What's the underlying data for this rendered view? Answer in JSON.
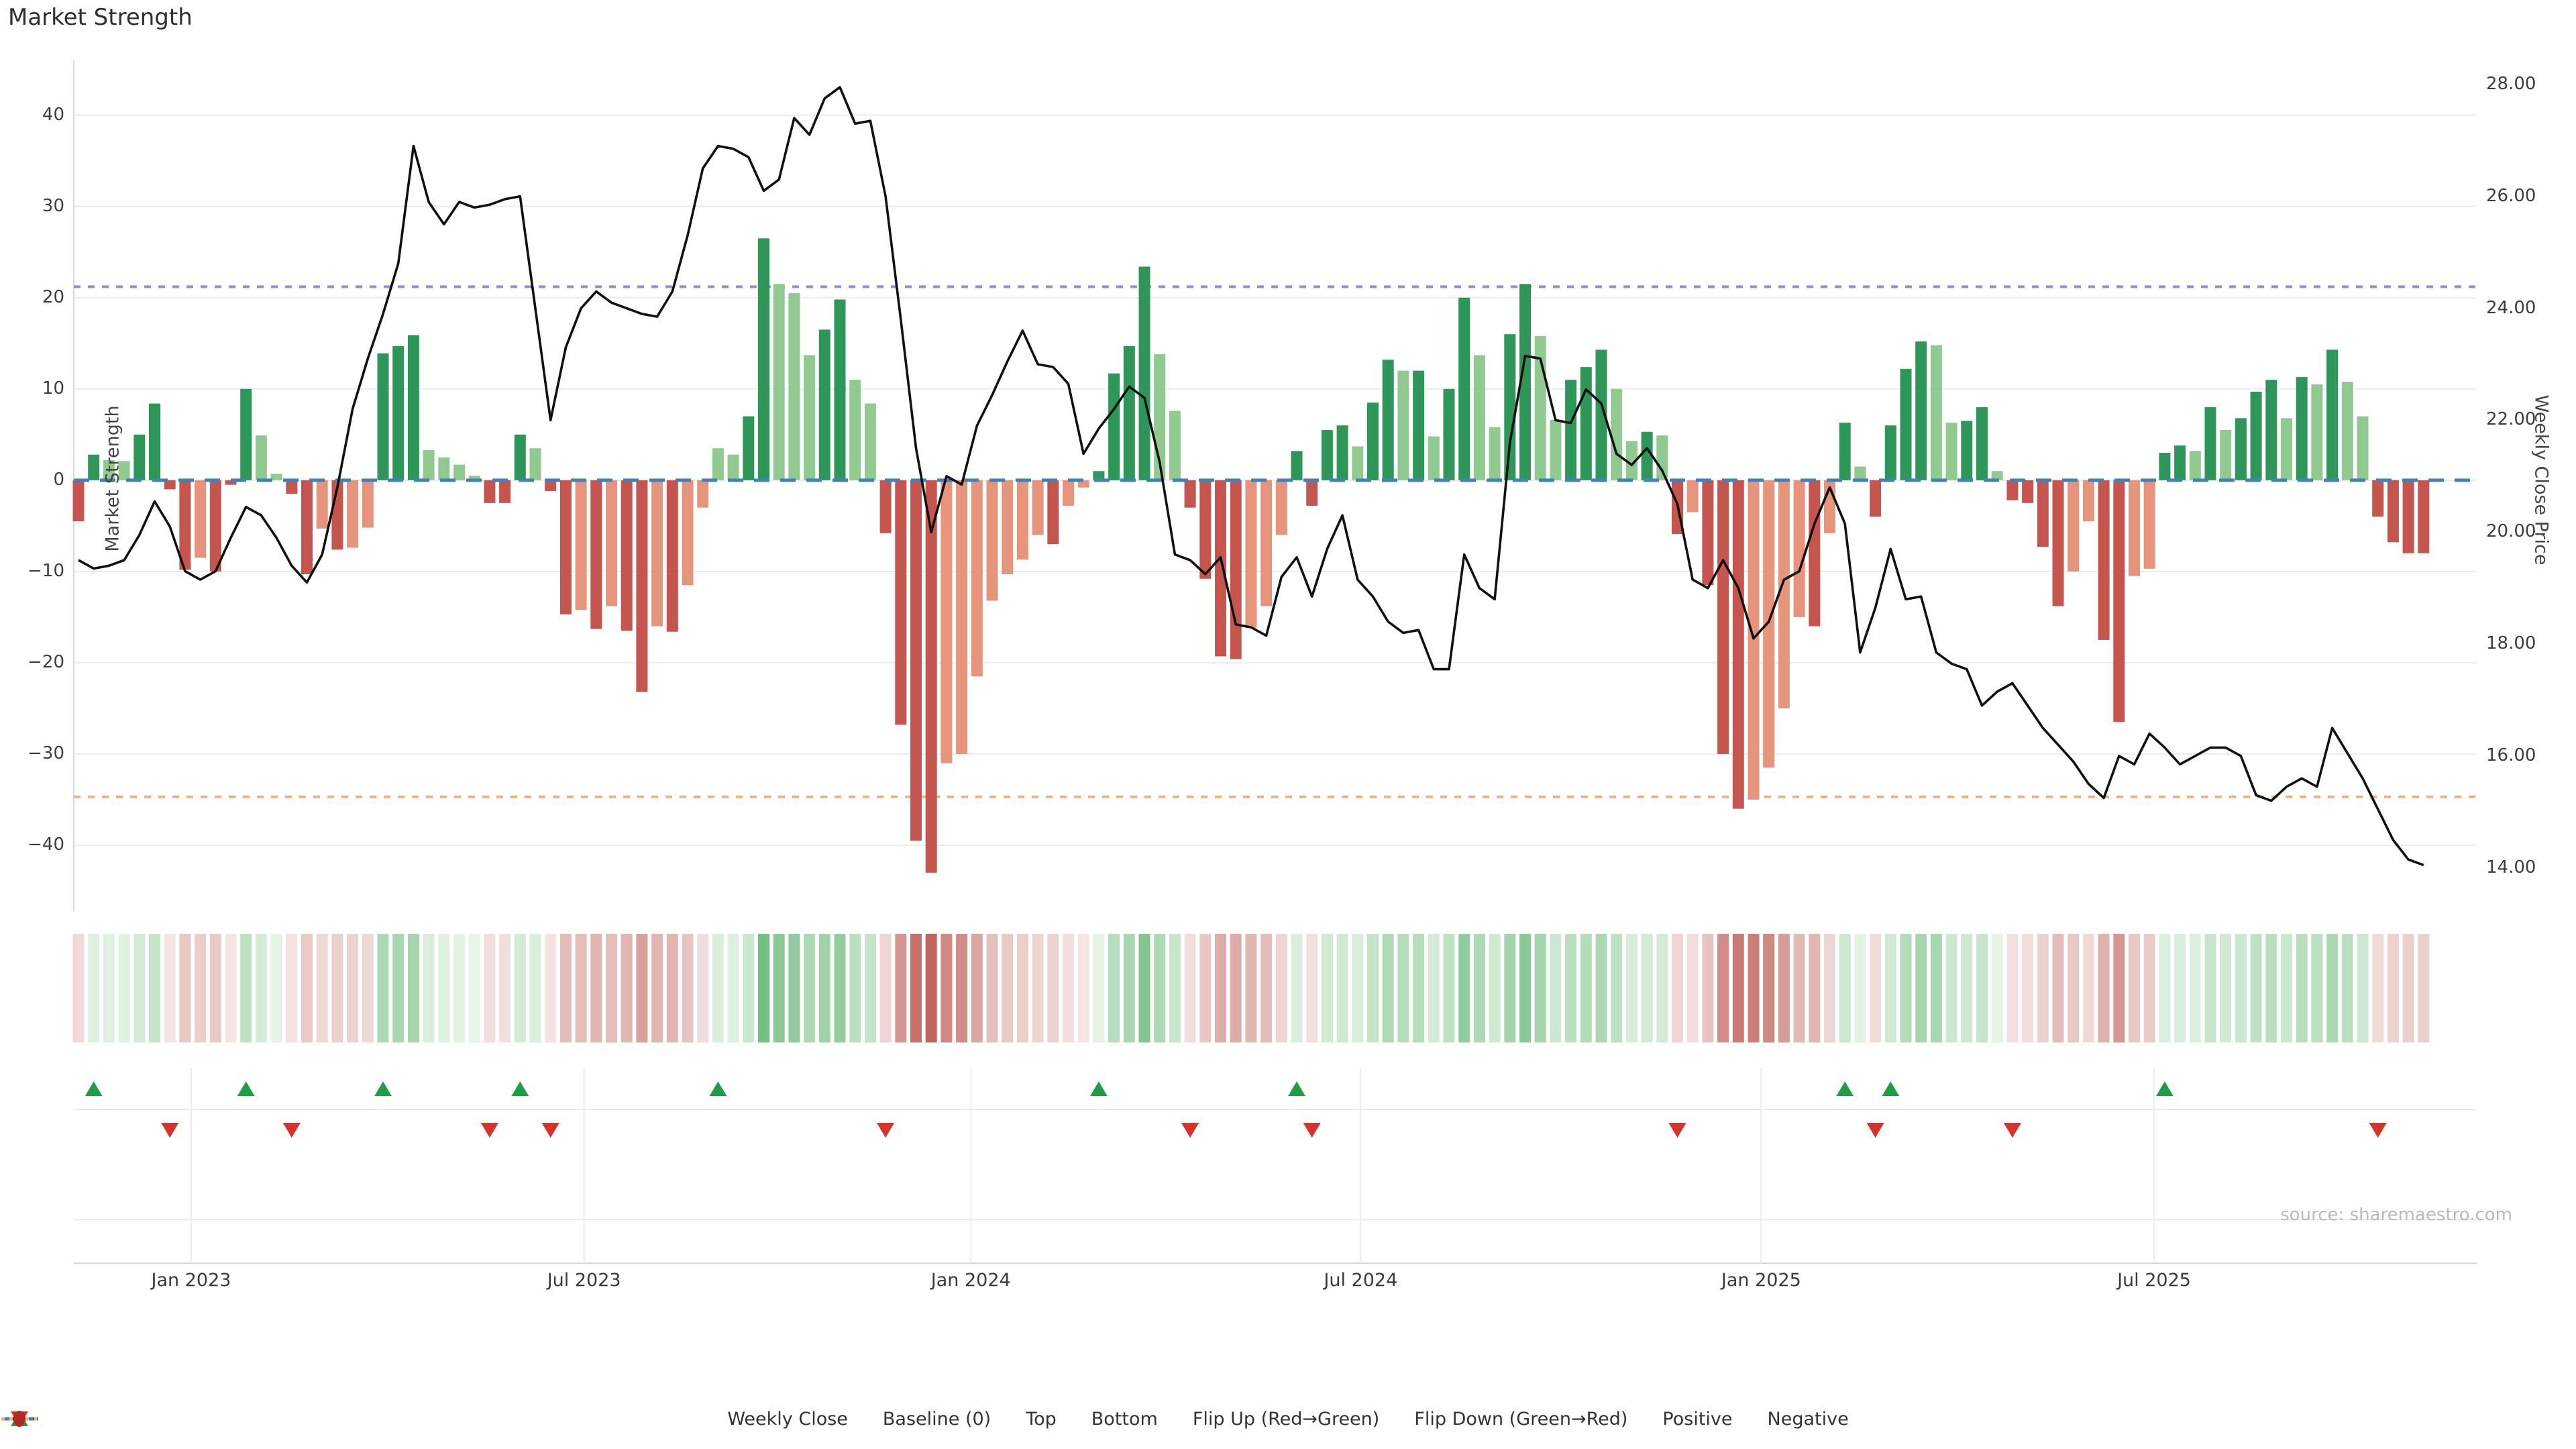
{
  "title": "Market Strength",
  "source": "source: sharemaestro.com",
  "axes": {
    "left_title": "Market Strength",
    "right_title": "Weekly Close Price",
    "left_ticks": [
      "40",
      "30",
      "20",
      "10",
      "0",
      "−10",
      "−20",
      "−30",
      "−40"
    ],
    "left_tick_values": [
      40,
      30,
      20,
      10,
      0,
      -10,
      -20,
      -30,
      -40
    ],
    "right_ticks": [
      "28.00",
      "26.00",
      "24.00",
      "22.00",
      "20.00",
      "18.00",
      "16.00",
      "14.00"
    ],
    "right_tick_values": [
      28,
      26,
      24,
      22,
      20,
      18,
      16,
      14
    ],
    "x_ticks": [
      {
        "label": "Jan 2023",
        "week": 7.4
      },
      {
        "label": "Jul 2023",
        "week": 33.2
      },
      {
        "label": "Jan 2024",
        "week": 58.6
      },
      {
        "label": "Jul 2024",
        "week": 84.2
      },
      {
        "label": "Jan 2025",
        "week": 110.5
      },
      {
        "label": "Jul 2025",
        "week": 136.3
      }
    ]
  },
  "chart_data": {
    "type": "bar",
    "title": "Market Strength",
    "ylabel_left": "Market Strength",
    "ylabel_right": "Weekly Close Price",
    "ylim_left": [
      -47.2,
      46.0
    ],
    "ylim_right": [
      13.23,
      28.43
    ],
    "baseline": 0,
    "top_line": 21.2,
    "bottom_line": -34.7,
    "n_weeks": 155,
    "series": [
      {
        "name": "Market Strength",
        "type": "bar",
        "values": [
          -4.5,
          2.8,
          2.2,
          2.1,
          5.0,
          8.4,
          -1.0,
          -9.8,
          -8.5,
          -10.0,
          -0.5,
          10.0,
          4.9,
          0.7,
          -1.5,
          -10.3,
          -5.3,
          -7.6,
          -7.4,
          -5.2,
          13.9,
          14.7,
          15.9,
          3.3,
          2.5,
          1.7,
          0.5,
          -2.5,
          -2.5,
          5.0,
          3.5,
          -1.2,
          -14.7,
          -14.2,
          -16.3,
          -13.8,
          -16.5,
          -23.2,
          -16.0,
          -16.6,
          -11.5,
          -3.0,
          3.5,
          2.8,
          7.0,
          26.5,
          21.5,
          20.5,
          13.7,
          16.5,
          19.8,
          11.0,
          8.4,
          -5.8,
          -26.8,
          -39.5,
          -43.0,
          -31.0,
          -30.0,
          -21.5,
          -13.2,
          -10.3,
          -8.7,
          -6.0,
          -7.0,
          -2.8,
          -0.8,
          1.0,
          11.7,
          14.7,
          23.4,
          13.8,
          7.6,
          -3.0,
          -10.8,
          -19.3,
          -19.6,
          -16.2,
          -13.8,
          -6.0,
          3.2,
          -2.8,
          5.5,
          6.0,
          3.7,
          8.5,
          13.2,
          12.0,
          12.0,
          4.8,
          10.0,
          20.0,
          13.7,
          5.8,
          16.0,
          21.5,
          15.8,
          6.6,
          11.0,
          12.4,
          14.3,
          10.0,
          4.3,
          5.3,
          4.9,
          -5.9,
          -3.5,
          -11.5,
          -30.0,
          -36.0,
          -35.0,
          -31.5,
          -25.0,
          -15.0,
          -16.0,
          -5.8,
          6.3,
          1.5,
          -4.0,
          6.0,
          12.2,
          15.2,
          14.8,
          6.3,
          6.5,
          8.0,
          1.0,
          -2.2,
          -2.5,
          -7.3,
          -13.8,
          -10.0,
          -4.5,
          -17.5,
          -26.5,
          -10.5,
          -9.7,
          3.0,
          3.8,
          3.2,
          8.0,
          5.5,
          6.8,
          9.7,
          11.0,
          6.8,
          11.3,
          10.5,
          14.3,
          10.8,
          7.0,
          -4.0,
          -6.8,
          -8.0,
          -8.0
        ]
      },
      {
        "name": "Weekly Close",
        "type": "line",
        "values": [
          19.5,
          19.35,
          19.4,
          19.5,
          19.95,
          20.55,
          20.1,
          19.3,
          19.15,
          19.3,
          19.9,
          20.45,
          20.3,
          19.9,
          19.4,
          19.1,
          19.6,
          20.8,
          22.2,
          23.1,
          23.9,
          24.8,
          26.9,
          25.9,
          25.5,
          25.9,
          25.8,
          25.85,
          25.95,
          26.0,
          24.0,
          22.0,
          23.3,
          24.0,
          24.3,
          24.1,
          24.0,
          23.9,
          23.85,
          24.3,
          25.3,
          26.5,
          26.9,
          26.85,
          26.7,
          26.1,
          26.3,
          27.4,
          27.1,
          27.75,
          27.95,
          27.3,
          27.35,
          26.0,
          23.8,
          21.5,
          20.0,
          21.0,
          20.85,
          21.9,
          22.45,
          23.05,
          23.6,
          23.0,
          22.95,
          22.65,
          21.4,
          21.85,
          22.2,
          22.6,
          22.4,
          21.25,
          19.6,
          19.5,
          19.25,
          19.55,
          18.35,
          18.3,
          18.15,
          19.2,
          19.55,
          18.85,
          19.7,
          20.3,
          19.15,
          18.85,
          18.4,
          18.2,
          18.25,
          17.55,
          17.55,
          19.6,
          19.0,
          18.8,
          21.6,
          23.15,
          23.1,
          22.0,
          21.95,
          22.55,
          22.3,
          21.4,
          21.2,
          21.5,
          21.1,
          20.5,
          19.15,
          19.0,
          19.5,
          19.0,
          18.1,
          18.4,
          19.15,
          19.3,
          20.15,
          20.8,
          20.15,
          17.85,
          18.65,
          19.7,
          18.8,
          18.85,
          17.85,
          17.65,
          17.55,
          16.9,
          17.15,
          17.3,
          16.9,
          16.5,
          16.2,
          15.9,
          15.5,
          15.25,
          16.0,
          15.85,
          16.4,
          16.15,
          15.85,
          16.0,
          16.15,
          16.15,
          16.0,
          15.3,
          15.2,
          15.45,
          15.6,
          15.45,
          16.5,
          16.05,
          15.6,
          15.05,
          14.5,
          14.15,
          14.05
        ]
      }
    ],
    "bar_shades": [
      "r",
      "d",
      "l",
      "l",
      "d",
      "d",
      "r",
      "r",
      "m",
      "r",
      "r",
      "d",
      "l",
      "l",
      "r",
      "r",
      "m",
      "r",
      "m",
      "m",
      "d",
      "d",
      "d",
      "l",
      "l",
      "l",
      "l",
      "r",
      "r",
      "d",
      "l",
      "r",
      "r",
      "m",
      "r",
      "m",
      "r",
      "r",
      "m",
      "r",
      "m",
      "m",
      "l",
      "l",
      "d",
      "d",
      "l",
      "l",
      "l",
      "d",
      "d",
      "l",
      "l",
      "r",
      "r",
      "r",
      "r",
      "m",
      "m",
      "m",
      "m",
      "m",
      "m",
      "m",
      "r",
      "m",
      "m",
      "d",
      "d",
      "d",
      "d",
      "l",
      "l",
      "r",
      "r",
      "r",
      "r",
      "m",
      "m",
      "m",
      "d",
      "r",
      "d",
      "d",
      "l",
      "d",
      "d",
      "l",
      "d",
      "l",
      "d",
      "d",
      "l",
      "l",
      "d",
      "d",
      "l",
      "l",
      "d",
      "d",
      "d",
      "l",
      "l",
      "d",
      "l",
      "r",
      "m",
      "r",
      "r",
      "r",
      "m",
      "m",
      "m",
      "m",
      "r",
      "m",
      "d",
      "l",
      "r",
      "d",
      "d",
      "d",
      "l",
      "l",
      "d",
      "d",
      "l",
      "r",
      "r",
      "r",
      "r",
      "m",
      "m",
      "r",
      "r",
      "m",
      "m",
      "d",
      "d",
      "l",
      "d",
      "l",
      "d",
      "d",
      "d",
      "l",
      "d",
      "l",
      "d",
      "l",
      "l",
      "r",
      "r",
      "r",
      "r"
    ],
    "flip_up_weeks": [
      1,
      11,
      20,
      29,
      42,
      67,
      80,
      116,
      119,
      137
    ],
    "flip_down_weeks": [
      6,
      14,
      27,
      31,
      53,
      73,
      81,
      105,
      118,
      127,
      151
    ],
    "legend_position": "bottom",
    "grid": true
  },
  "legend": {
    "items": [
      {
        "swatch": "line",
        "color": "#111111",
        "label": "Weekly Close"
      },
      {
        "swatch": "dash",
        "color": "#3d83c2",
        "label": "Baseline (0)"
      },
      {
        "swatch": "dots",
        "color": "#a583d9",
        "label": "Top"
      },
      {
        "swatch": "dots",
        "color": "#f3b079",
        "label": "Bottom"
      },
      {
        "swatch": "tri-up",
        "color": "#1f9d45",
        "label": "Flip Up (Red→Green)"
      },
      {
        "swatch": "tri-down",
        "color": "#d6332c",
        "label": "Flip Down (Green→Red)"
      },
      {
        "swatch": "circle",
        "color": "#1e8e3e",
        "label": "Positive"
      },
      {
        "swatch": "circle",
        "color": "#b02a25",
        "label": "Negative"
      }
    ]
  },
  "colors": {
    "bar_dark_green": "#2e9658",
    "bar_light_green": "#90ca90",
    "bar_dark_red": "#c5564f",
    "bar_salmon": "#e6947b",
    "price_line": "#111111",
    "baseline_dash": "#3d83c2",
    "top_dash": "#a583d9",
    "bottom_dash": "#f3b079",
    "grid": "#ececf0",
    "spine": "#d8d8dc",
    "flip_up": "#1f9d45",
    "flip_down": "#d6332c",
    "heat_green_max": "#66b878",
    "heat_green_min": "#e9f5e9",
    "heat_red_max": "#bf5f58",
    "heat_red_min": "#f5e7e5"
  }
}
